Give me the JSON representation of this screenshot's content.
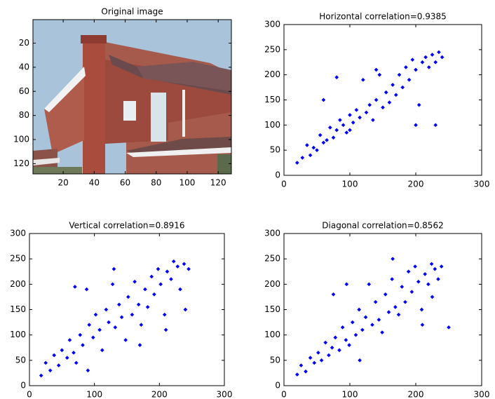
{
  "chart_data": [
    {
      "type": "image",
      "title": "Original image",
      "xlim": [
        0.5,
        128.5
      ],
      "ylim": [
        128.5,
        0.5
      ],
      "xticks": [
        20,
        40,
        60,
        80,
        100,
        120
      ],
      "yticks": [
        20,
        40,
        60,
        80,
        100,
        120
      ]
    },
    {
      "type": "scatter",
      "title": "Horizontal correlation=0.9385",
      "color": "#0000ff",
      "xlim": [
        0,
        300
      ],
      "ylim": [
        0,
        300
      ],
      "xticks": [
        0,
        100,
        200,
        300
      ],
      "yticks": [
        0,
        50,
        100,
        150,
        200,
        250,
        300
      ],
      "x": [
        20,
        28,
        35,
        40,
        45,
        50,
        55,
        60,
        65,
        70,
        75,
        80,
        85,
        90,
        95,
        100,
        105,
        110,
        115,
        120,
        125,
        130,
        135,
        140,
        145,
        150,
        155,
        160,
        165,
        170,
        175,
        180,
        185,
        190,
        195,
        200,
        205,
        210,
        215,
        220,
        225,
        230,
        235,
        240,
        60,
        80,
        100,
        140,
        200,
        230
      ],
      "y": [
        25,
        35,
        60,
        40,
        55,
        50,
        80,
        65,
        70,
        95,
        75,
        90,
        110,
        100,
        85,
        120,
        105,
        130,
        115,
        190,
        125,
        140,
        110,
        150,
        200,
        135,
        165,
        145,
        180,
        160,
        200,
        175,
        215,
        190,
        230,
        210,
        140,
        225,
        235,
        215,
        240,
        225,
        245,
        235,
        150,
        195,
        90,
        210,
        100,
        100
      ]
    },
    {
      "type": "scatter",
      "title": "Vertical correlation=0.8916",
      "color": "#0000ff",
      "xlim": [
        0,
        300
      ],
      "ylim": [
        0,
        300
      ],
      "xticks": [
        0,
        100,
        200,
        300
      ],
      "yticks": [
        0,
        50,
        100,
        150,
        200,
        250,
        300
      ],
      "x": [
        18,
        25,
        32,
        38,
        45,
        50,
        58,
        62,
        68,
        72,
        78,
        82,
        88,
        92,
        98,
        102,
        108,
        112,
        118,
        122,
        128,
        132,
        138,
        142,
        148,
        152,
        158,
        162,
        168,
        172,
        178,
        182,
        188,
        192,
        198,
        202,
        208,
        212,
        218,
        222,
        228,
        232,
        238,
        245,
        70,
        90,
        130,
        170,
        210,
        240
      ],
      "y": [
        20,
        45,
        30,
        60,
        40,
        70,
        55,
        90,
        65,
        45,
        100,
        80,
        190,
        120,
        95,
        140,
        110,
        70,
        150,
        125,
        200,
        115,
        160,
        135,
        90,
        175,
        140,
        205,
        160,
        120,
        190,
        155,
        215,
        180,
        230,
        200,
        140,
        225,
        210,
        245,
        235,
        190,
        240,
        230,
        195,
        30,
        230,
        80,
        110,
        150
      ]
    },
    {
      "type": "scatter",
      "title": "Diagonal correlation=0.8562",
      "color": "#0000ff",
      "xlim": [
        0,
        300
      ],
      "ylim": [
        0,
        300
      ],
      "xticks": [
        0,
        100,
        200,
        300
      ],
      "yticks": [
        0,
        50,
        100,
        150,
        200,
        250,
        300
      ],
      "x": [
        20,
        26,
        33,
        40,
        46,
        52,
        57,
        63,
        68,
        73,
        78,
        84,
        89,
        94,
        99,
        104,
        109,
        114,
        119,
        124,
        129,
        134,
        139,
        144,
        149,
        154,
        159,
        164,
        169,
        174,
        179,
        184,
        189,
        194,
        199,
        204,
        209,
        214,
        219,
        224,
        229,
        234,
        239,
        250,
        75,
        95,
        115,
        165,
        210,
        225
      ],
      "y": [
        22,
        40,
        28,
        55,
        45,
        65,
        50,
        85,
        60,
        75,
        95,
        70,
        115,
        90,
        80,
        125,
        100,
        150,
        110,
        135,
        200,
        120,
        165,
        130,
        105,
        180,
        145,
        210,
        155,
        140,
        195,
        165,
        225,
        185,
        235,
        205,
        150,
        220,
        200,
        240,
        230,
        210,
        235,
        115,
        180,
        200,
        50,
        250,
        120,
        175
      ]
    }
  ]
}
